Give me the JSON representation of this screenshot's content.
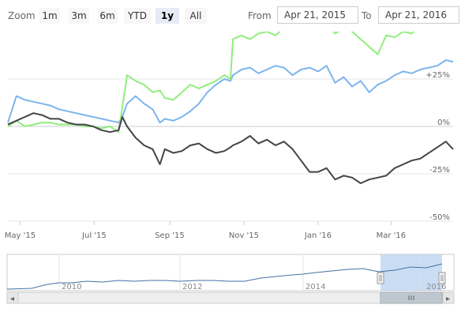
{
  "toolbar": {
    "zoom_label": "Zoom",
    "zoom_buttons": [
      {
        "label": "1m",
        "active": false
      },
      {
        "label": "3m",
        "active": false
      },
      {
        "label": "6m",
        "active": false
      },
      {
        "label": "YTD",
        "active": false
      },
      {
        "label": "1y",
        "active": true
      },
      {
        "label": "All",
        "active": false
      }
    ],
    "from_label": "From",
    "from_value": "Apr 21, 2015",
    "to_label": "To",
    "to_value": "Apr 21, 2016"
  },
  "colors": {
    "green_series": "#90ed7d",
    "blue_series": "#7cb5ec",
    "black_series": "#434348",
    "nav_line": "#4572a7",
    "nav_selection": "#b8d1ef",
    "grid": "#e6e6e6",
    "zero_line": "#cccccc"
  },
  "chart_data": {
    "type": "line",
    "y_unit": "percent change",
    "ylim": [
      -50,
      50
    ],
    "ytick_labels": [
      "+25%",
      "0%",
      "-25%",
      "-50%"
    ],
    "ytick_values": [
      25,
      0,
      -25,
      -50
    ],
    "xtick_labels": [
      "May '15",
      "Jul '15",
      "Sep '15",
      "Nov '15",
      "Jan '16",
      "Mar '16"
    ],
    "xtick_dates": [
      "2015-05-01",
      "2015-07-01",
      "2015-09-01",
      "2015-11-01",
      "2016-01-01",
      "2016-03-01"
    ],
    "xlim": [
      "2015-04-21",
      "2016-04-21"
    ],
    "grid": true,
    "series": [
      {
        "key": "green",
        "x": [
          "2015-04-21",
          "2015-04-28",
          "2015-05-05",
          "2015-05-12",
          "2015-05-19",
          "2015-05-26",
          "2015-06-02",
          "2015-06-09",
          "2015-06-16",
          "2015-06-23",
          "2015-06-30",
          "2015-07-07",
          "2015-07-14",
          "2015-07-21",
          "2015-07-24",
          "2015-07-28",
          "2015-08-04",
          "2015-08-11",
          "2015-08-18",
          "2015-08-24",
          "2015-08-28",
          "2015-09-04",
          "2015-09-11",
          "2015-09-18",
          "2015-09-25",
          "2015-10-02",
          "2015-10-09",
          "2015-10-16",
          "2015-10-21",
          "2015-10-23",
          "2015-10-30",
          "2015-11-06",
          "2015-11-13",
          "2015-11-20",
          "2015-11-27",
          "2015-12-04",
          "2015-12-11",
          "2015-12-18",
          "2015-12-25",
          "2016-01-01",
          "2016-01-08",
          "2016-01-15",
          "2016-01-22",
          "2016-01-29",
          "2016-02-05",
          "2016-02-12",
          "2016-02-19",
          "2016-02-26",
          "2016-03-04",
          "2016-03-11",
          "2016-03-18",
          "2016-03-25",
          "2016-04-01",
          "2016-04-08",
          "2016-04-15",
          "2016-04-21"
        ],
        "y": [
          0,
          3,
          0,
          1,
          2,
          2,
          1,
          1,
          1,
          0,
          0,
          -1,
          0,
          -3,
          10,
          27,
          24,
          22,
          18,
          19,
          15,
          14,
          18,
          22,
          20,
          22,
          24,
          27,
          25,
          46,
          48,
          46,
          49,
          50,
          48,
          52,
          55,
          54,
          56,
          52,
          54,
          49,
          52,
          50,
          46,
          42,
          38,
          48,
          47,
          50,
          49,
          54,
          53,
          56,
          58,
          56
        ]
      },
      {
        "key": "blue",
        "x": [
          "2015-04-21",
          "2015-04-28",
          "2015-05-05",
          "2015-05-12",
          "2015-05-19",
          "2015-05-26",
          "2015-06-02",
          "2015-06-09",
          "2015-06-16",
          "2015-06-23",
          "2015-06-30",
          "2015-07-07",
          "2015-07-14",
          "2015-07-21",
          "2015-07-24",
          "2015-07-28",
          "2015-08-04",
          "2015-08-11",
          "2015-08-18",
          "2015-08-24",
          "2015-08-28",
          "2015-09-04",
          "2015-09-11",
          "2015-09-18",
          "2015-09-25",
          "2015-10-02",
          "2015-10-09",
          "2015-10-16",
          "2015-10-21",
          "2015-10-23",
          "2015-10-30",
          "2015-11-06",
          "2015-11-13",
          "2015-11-20",
          "2015-11-27",
          "2015-12-04",
          "2015-12-11",
          "2015-12-18",
          "2015-12-25",
          "2016-01-01",
          "2016-01-08",
          "2016-01-15",
          "2016-01-22",
          "2016-01-29",
          "2016-02-05",
          "2016-02-12",
          "2016-02-19",
          "2016-02-26",
          "2016-03-04",
          "2016-03-11",
          "2016-03-18",
          "2016-03-25",
          "2016-04-01",
          "2016-04-08",
          "2016-04-15",
          "2016-04-21"
        ],
        "y": [
          2,
          16,
          14,
          13,
          12,
          11,
          9,
          8,
          7,
          6,
          5,
          4,
          3,
          2,
          5,
          12,
          16,
          12,
          9,
          2,
          4,
          3,
          5,
          8,
          12,
          18,
          22,
          25,
          24,
          27,
          30,
          31,
          28,
          30,
          32,
          31,
          27,
          30,
          31,
          29,
          32,
          23,
          26,
          21,
          24,
          18,
          22,
          24,
          27,
          29,
          28,
          30,
          31,
          32,
          35,
          34
        ]
      },
      {
        "key": "black",
        "x": [
          "2015-04-21",
          "2015-04-28",
          "2015-05-05",
          "2015-05-12",
          "2015-05-19",
          "2015-05-26",
          "2015-06-02",
          "2015-06-09",
          "2015-06-16",
          "2015-06-23",
          "2015-06-30",
          "2015-07-07",
          "2015-07-14",
          "2015-07-21",
          "2015-07-24",
          "2015-07-28",
          "2015-08-04",
          "2015-08-11",
          "2015-08-18",
          "2015-08-24",
          "2015-08-28",
          "2015-09-04",
          "2015-09-11",
          "2015-09-18",
          "2015-09-25",
          "2015-10-02",
          "2015-10-09",
          "2015-10-16",
          "2015-10-21",
          "2015-10-23",
          "2015-10-30",
          "2015-11-06",
          "2015-11-13",
          "2015-11-20",
          "2015-11-27",
          "2015-12-04",
          "2015-12-11",
          "2015-12-18",
          "2015-12-25",
          "2016-01-01",
          "2016-01-08",
          "2016-01-15",
          "2016-01-22",
          "2016-01-29",
          "2016-02-05",
          "2016-02-12",
          "2016-02-19",
          "2016-02-26",
          "2016-03-04",
          "2016-03-11",
          "2016-03-18",
          "2016-03-25",
          "2016-04-01",
          "2016-04-08",
          "2016-04-15",
          "2016-04-21"
        ],
        "y": [
          1,
          3,
          5,
          7,
          6,
          4,
          4,
          2,
          1,
          1,
          0,
          -2,
          -3,
          -2,
          5,
          0,
          -6,
          -10,
          -12,
          -20,
          -12,
          -14,
          -13,
          -10,
          -9,
          -12,
          -14,
          -13,
          -11,
          -10,
          -8,
          -5,
          -9,
          -7,
          -10,
          -8,
          -12,
          -18,
          -24,
          -24,
          -22,
          -28,
          -26,
          -27,
          -30,
          -28,
          -27,
          -26,
          -22,
          -20,
          -18,
          -17,
          -14,
          -11,
          -8,
          -12
        ]
      }
    ]
  },
  "navigator": {
    "tick_labels": [
      "2010",
      "2012",
      "2014",
      "2016"
    ],
    "scrollbar_left_arrow": "◂",
    "scrollbar_right_arrow": "▸"
  }
}
